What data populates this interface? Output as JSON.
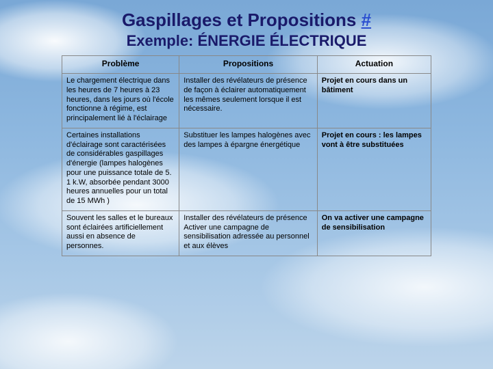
{
  "title": {
    "text": "Gaspillages et Propositions ",
    "hash": "#",
    "color": "#1a1a6a",
    "hash_color": "#2a4ed0",
    "fontsize": 26
  },
  "subtitle": {
    "text": "Exemple: ÉNERGIE ÉLECTRIQUE",
    "color": "#1a1a6a",
    "fontsize": 22
  },
  "table": {
    "header_fontsize": 12,
    "cell_fontsize": 11,
    "header_color": "#000000",
    "cell_color": "#000000",
    "columns": [
      "Problème",
      "Propositions",
      "Actuation"
    ],
    "rows": [
      {
        "probleme": "Le chargement électrique dans les heures de 7 heures à 23 heures, dans les jours où l'école fonctionne à régime, est principalement lié à l'éclairage",
        "propositions": "Installer des révélateurs de présence de façon à éclairer automatiquement les mêmes seulement lorsque il est nécessaire.",
        "actuation": "Projet en cours dans un bâtiment",
        "actuation_bold": true
      },
      {
        "probleme": "Certaines installations d'éclairage sont caractérisées de considérables gaspillages d'énergie (lampes halogènes pour une puissance totale de 5. 1 k.W, absorbée pendant 3000 heures annuelles pour un total de 15 MWh )",
        "propositions": "Substituer les lampes halogènes avec des lampes à épargne énergétique",
        "actuation": "Projet en cours : les lampes vont à être substituées",
        "actuation_bold": true
      },
      {
        "probleme": "Souvent les salles et le bureaux sont éclairées artificiellement aussi en absence de personnes.",
        "propositions": "Installer des révélateurs de présence\nActiver une campagne de sensibilisation adressée au personnel et aux élèves",
        "actuation": "On va activer une campagne de sensibilisation",
        "actuation_bold": true
      }
    ]
  },
  "colors": {
    "sky_top": "#7aa8d6",
    "sky_bottom": "#bcd4ea",
    "border": "#888888"
  }
}
